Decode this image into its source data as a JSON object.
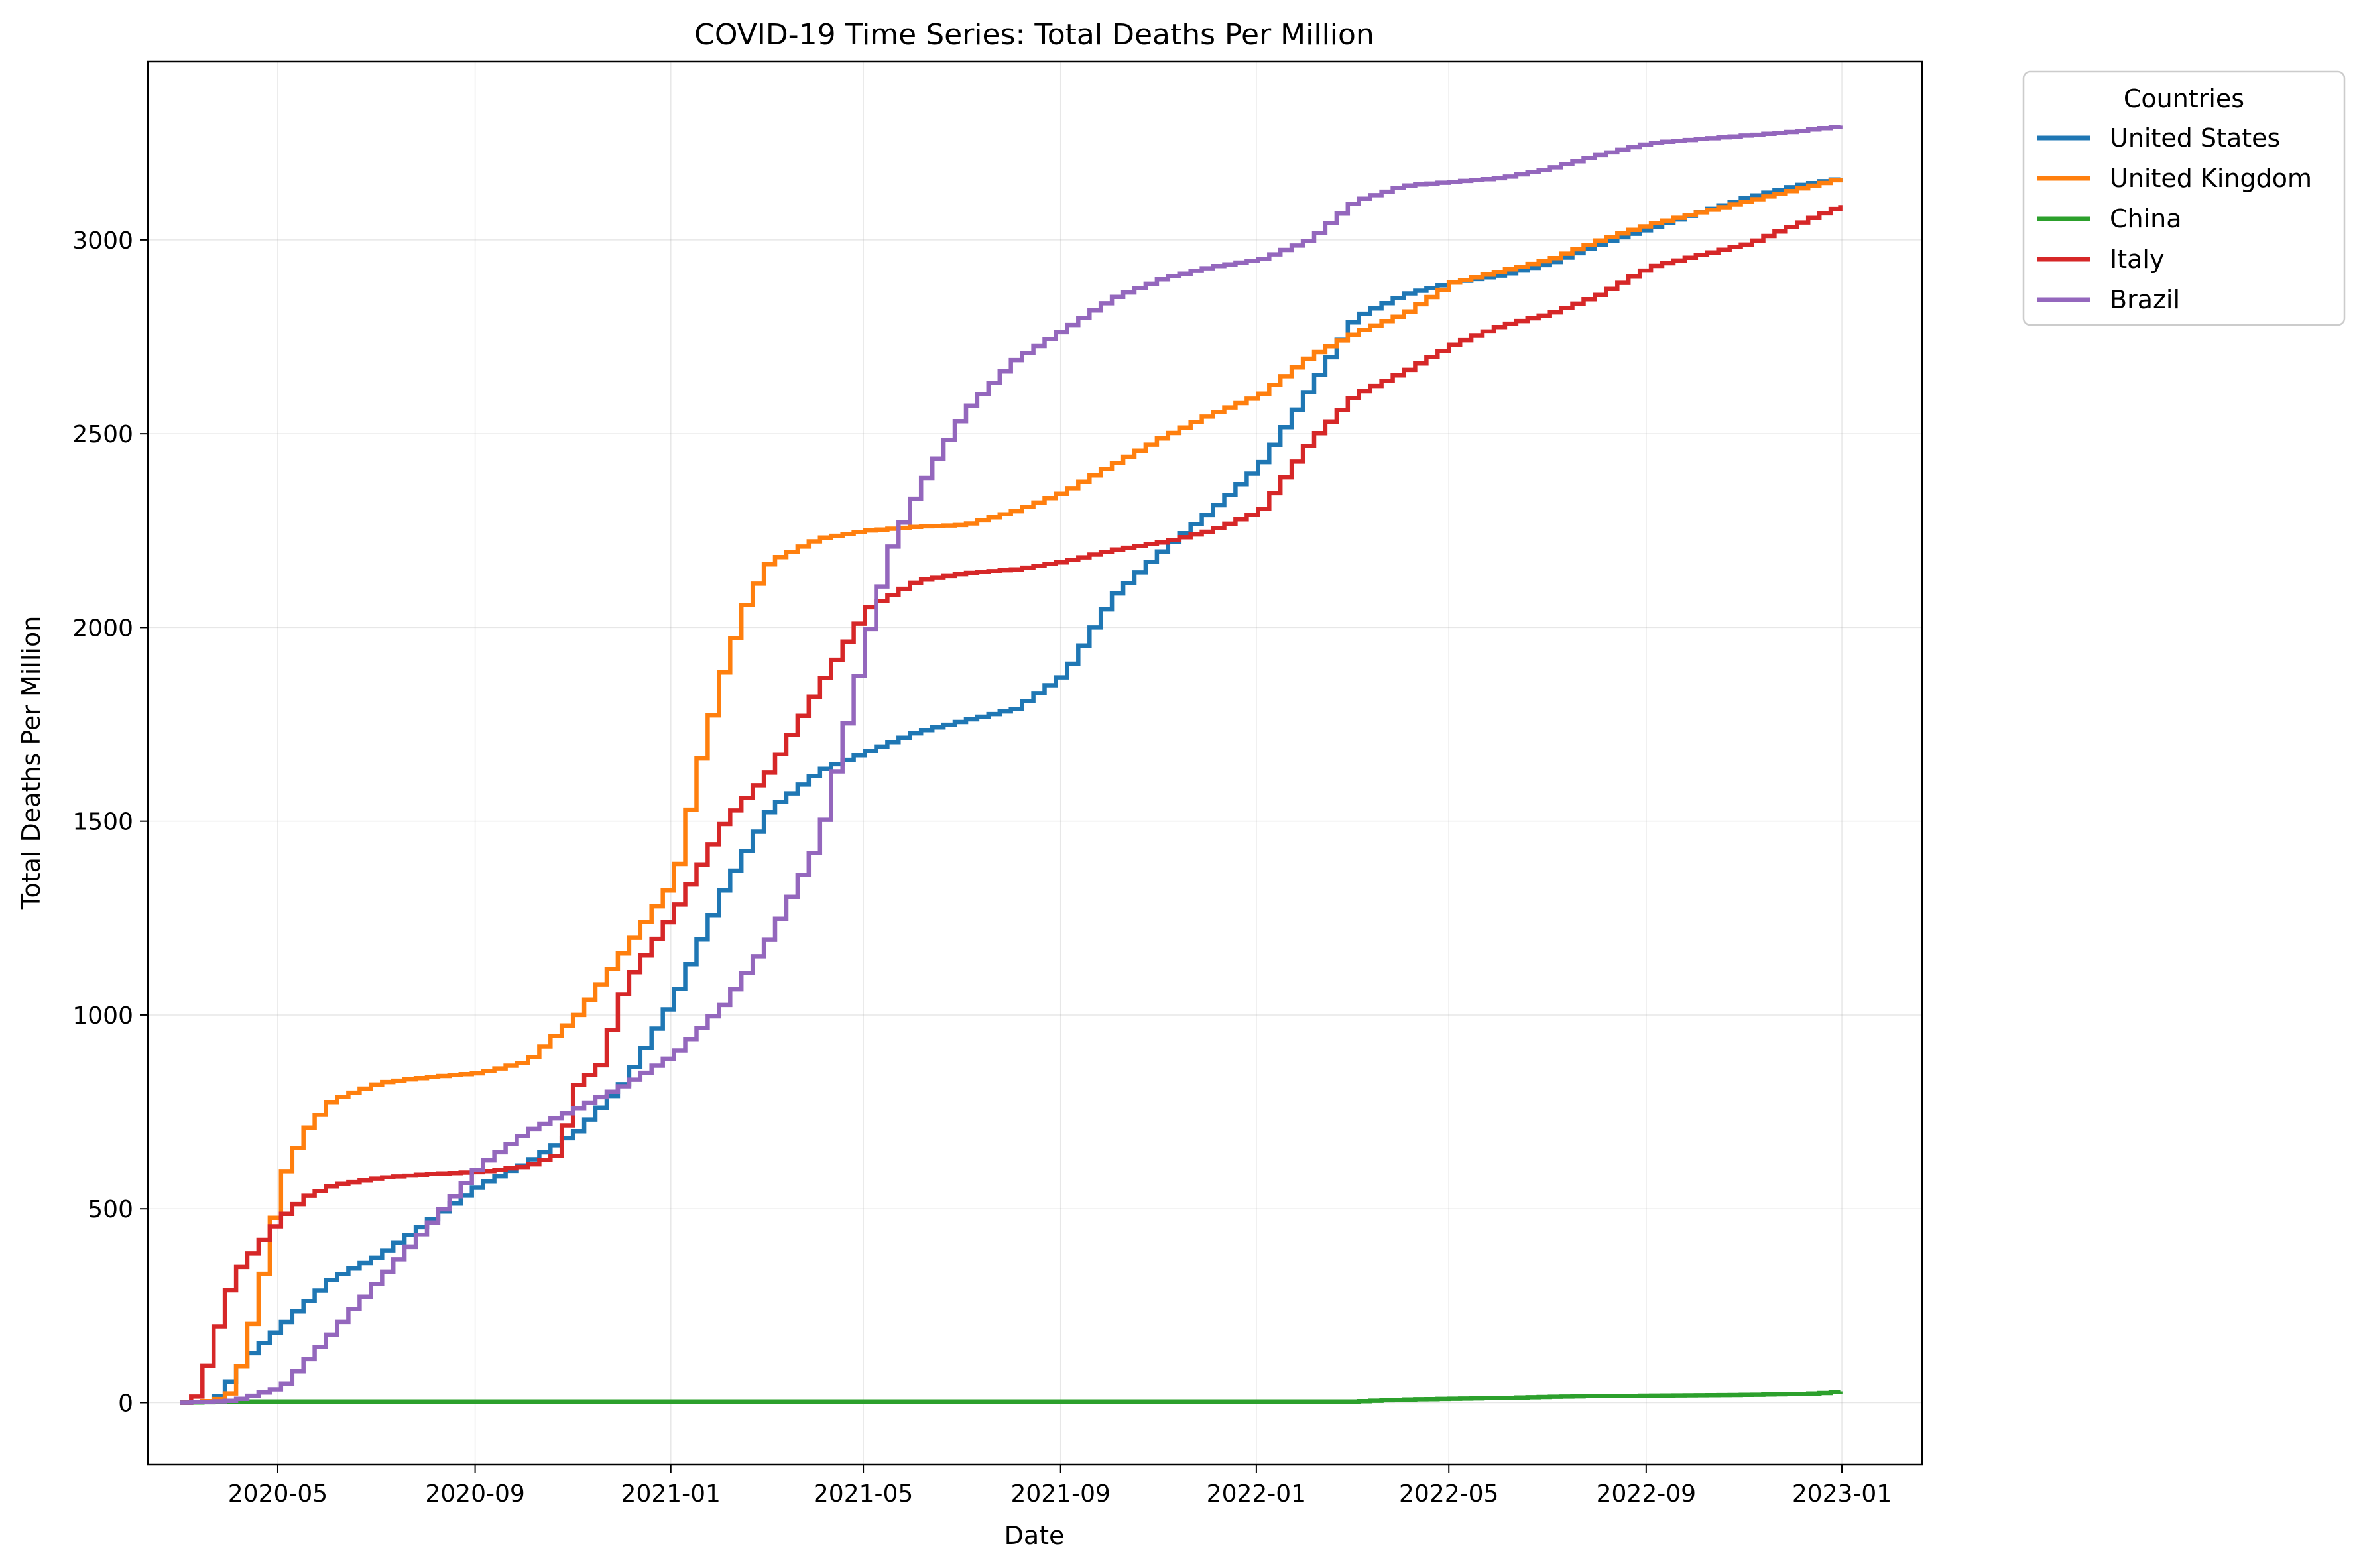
{
  "chart_data": {
    "type": "line",
    "title": "COVID-19 Time Series: Total Deaths Per Million",
    "xlabel": "Date",
    "ylabel": "Total Deaths Per Million",
    "x_ticks": [
      "2020-05",
      "2020-09",
      "2021-01",
      "2021-05",
      "2021-09",
      "2022-01",
      "2022-05",
      "2022-09",
      "2023-01"
    ],
    "x_tick_values": [
      "2020-05-01",
      "2020-09-01",
      "2021-01-01",
      "2021-05-01",
      "2021-09-01",
      "2022-01-01",
      "2022-05-01",
      "2022-09-01",
      "2023-01-01"
    ],
    "xlim": [
      "2020-02-10",
      "2023-02-20"
    ],
    "y_ticks": [
      0,
      500,
      1000,
      1500,
      2000,
      2500,
      3000
    ],
    "ylim": [
      -160,
      3460
    ],
    "grid": true,
    "legend": {
      "title": "Countries",
      "position": "outside-top-right"
    },
    "line_style": "steps-weekly",
    "series": [
      {
        "name": "United States",
        "color": "#1f77b4",
        "x": [
          "2020-03-01",
          "2020-03-20",
          "2020-04-10",
          "2020-05-01",
          "2020-06-01",
          "2020-07-01",
          "2020-08-01",
          "2020-09-01",
          "2020-10-01",
          "2020-11-01",
          "2020-12-01",
          "2021-01-01",
          "2021-02-01",
          "2021-03-01",
          "2021-04-01",
          "2021-05-01",
          "2021-06-01",
          "2021-07-01",
          "2021-08-01",
          "2021-09-01",
          "2021-10-01",
          "2021-11-01",
          "2021-12-01",
          "2022-01-01",
          "2022-02-01",
          "2022-03-01",
          "2022-04-01",
          "2022-05-01",
          "2022-06-01",
          "2022-07-01",
          "2022-08-01",
          "2022-09-01",
          "2022-10-01",
          "2022-11-01",
          "2022-12-01",
          "2022-12-31"
        ],
        "y": [
          0,
          5,
          120,
          200,
          320,
          380,
          470,
          560,
          620,
          700,
          830,
          1050,
          1330,
          1530,
          1630,
          1680,
          1730,
          1760,
          1790,
          1880,
          2080,
          2200,
          2300,
          2420,
          2620,
          2800,
          2860,
          2890,
          2910,
          2940,
          2990,
          3030,
          3070,
          3110,
          3140,
          3160
        ]
      },
      {
        "name": "United Kingdom",
        "color": "#ff7f0e",
        "x": [
          "2020-03-01",
          "2020-03-20",
          "2020-04-01",
          "2020-04-15",
          "2020-05-01",
          "2020-05-15",
          "2020-06-01",
          "2020-07-01",
          "2020-08-01",
          "2020-09-01",
          "2020-10-01",
          "2020-11-01",
          "2020-12-01",
          "2021-01-01",
          "2021-01-15",
          "2021-02-01",
          "2021-02-15",
          "2021-03-01",
          "2021-04-01",
          "2021-05-01",
          "2021-06-01",
          "2021-07-01",
          "2021-08-01",
          "2021-09-01",
          "2021-10-01",
          "2021-11-01",
          "2021-12-01",
          "2022-01-01",
          "2022-02-01",
          "2022-03-01",
          "2022-04-01",
          "2022-05-01",
          "2022-06-01",
          "2022-07-01",
          "2022-08-01",
          "2022-09-01",
          "2022-10-01",
          "2022-11-01",
          "2022-12-01",
          "2022-12-31"
        ],
        "y": [
          0,
          5,
          30,
          250,
          580,
          700,
          780,
          825,
          840,
          850,
          880,
          1000,
          1170,
          1350,
          1630,
          1900,
          2070,
          2170,
          2230,
          2250,
          2260,
          2265,
          2300,
          2350,
          2420,
          2490,
          2550,
          2600,
          2700,
          2760,
          2810,
          2890,
          2920,
          2950,
          3000,
          3040,
          3070,
          3100,
          3130,
          3160
        ]
      },
      {
        "name": "China",
        "color": "#2ca02c",
        "x": [
          "2020-03-01",
          "2020-04-15",
          "2022-03-01",
          "2022-04-01",
          "2022-05-01",
          "2022-06-01",
          "2022-07-01",
          "2022-08-01",
          "2022-09-01",
          "2022-10-01",
          "2022-11-01",
          "2022-12-01",
          "2022-12-20",
          "2022-12-31"
        ],
        "y": [
          0,
          3,
          3,
          8,
          10,
          12,
          15,
          17,
          18,
          19,
          20,
          22,
          25,
          29
        ]
      },
      {
        "name": "Italy",
        "color": "#d62728",
        "x": [
          "2020-03-01",
          "2020-03-10",
          "2020-03-20",
          "2020-04-01",
          "2020-04-15",
          "2020-05-01",
          "2020-05-15",
          "2020-06-01",
          "2020-07-01",
          "2020-08-01",
          "2020-09-01",
          "2020-10-01",
          "2020-10-20",
          "2020-11-01",
          "2020-11-15",
          "2020-12-01",
          "2021-01-01",
          "2021-02-01",
          "2021-03-01",
          "2021-04-01",
          "2021-05-01",
          "2021-06-01",
          "2021-07-01",
          "2021-08-01",
          "2021-09-01",
          "2021-10-01",
          "2021-11-01",
          "2021-12-01",
          "2022-01-01",
          "2022-02-01",
          "2022-03-01",
          "2022-04-01",
          "2022-05-01",
          "2022-06-01",
          "2022-07-01",
          "2022-08-01",
          "2022-09-01",
          "2022-10-01",
          "2022-11-01",
          "2022-12-01",
          "2022-12-31"
        ],
        "y": [
          0,
          20,
          170,
          330,
          400,
          480,
          530,
          560,
          580,
          590,
          595,
          610,
          640,
          820,
          870,
          1080,
          1270,
          1500,
          1630,
          1850,
          2050,
          2120,
          2140,
          2150,
          2170,
          2200,
          2220,
          2250,
          2300,
          2480,
          2600,
          2660,
          2730,
          2780,
          2810,
          2860,
          2930,
          2960,
          2990,
          3040,
          3090
        ]
      },
      {
        "name": "Brazil",
        "color": "#9467bd",
        "x": [
          "2020-03-01",
          "2020-04-01",
          "2020-05-01",
          "2020-06-01",
          "2020-07-01",
          "2020-08-01",
          "2020-09-01",
          "2020-10-01",
          "2020-11-01",
          "2020-12-01",
          "2021-01-01",
          "2021-02-01",
          "2021-03-01",
          "2021-04-01",
          "2021-04-15",
          "2021-05-01",
          "2021-05-15",
          "2021-06-01",
          "2021-06-15",
          "2021-07-01",
          "2021-08-01",
          "2021-09-01",
          "2021-10-01",
          "2021-11-01",
          "2021-12-01",
          "2022-01-01",
          "2022-02-01",
          "2022-03-01",
          "2022-04-01",
          "2022-05-01",
          "2022-06-01",
          "2022-07-01",
          "2022-08-01",
          "2022-09-01",
          "2022-10-01",
          "2022-11-01",
          "2022-12-01",
          "2022-12-31"
        ],
        "y": [
          0,
          5,
          40,
          180,
          320,
          460,
          610,
          700,
          760,
          820,
          900,
          1030,
          1200,
          1450,
          1700,
          1980,
          2200,
          2350,
          2450,
          2560,
          2690,
          2770,
          2850,
          2900,
          2930,
          2950,
          3000,
          3100,
          3140,
          3150,
          3160,
          3185,
          3220,
          3250,
          3260,
          3270,
          3280,
          3295
        ]
      }
    ]
  }
}
